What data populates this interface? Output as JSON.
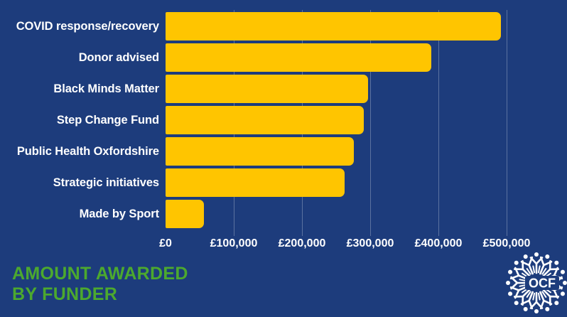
{
  "title": {
    "line1": "AMOUNT AWARDED",
    "line2": "BY FUNDER"
  },
  "logo": {
    "text": "OCF"
  },
  "colors": {
    "background": "#1d3c7c",
    "bar": "#ffc500",
    "title_green": "#4ca92e",
    "label_white": "#ffffff",
    "gridline": "rgba(255,255,255,0.28)"
  },
  "chart_data": {
    "type": "bar",
    "orientation": "horizontal",
    "title": "AMOUNT AWARDED BY FUNDER",
    "xlabel": "",
    "ylabel": "",
    "categories": [
      "COVID response/recovery",
      "Donor advised",
      "Black Minds Matter",
      "Step Change Fund",
      "Public Health Oxfordshire",
      "Strategic initiatives",
      "Made by Sport"
    ],
    "values": [
      492000,
      390000,
      297000,
      291000,
      276000,
      262000,
      56000
    ],
    "xlim": [
      0,
      500000
    ],
    "x_ticks": [
      {
        "value": 0,
        "label": "£0"
      },
      {
        "value": 100000,
        "label": "£100,000"
      },
      {
        "value": 200000,
        "label": "£200,000"
      },
      {
        "value": 300000,
        "label": "£300,000"
      },
      {
        "value": 400000,
        "label": "£400,000"
      },
      {
        "value": 500000,
        "label": "£500,000"
      }
    ],
    "grid": "vertical",
    "legend": false
  }
}
